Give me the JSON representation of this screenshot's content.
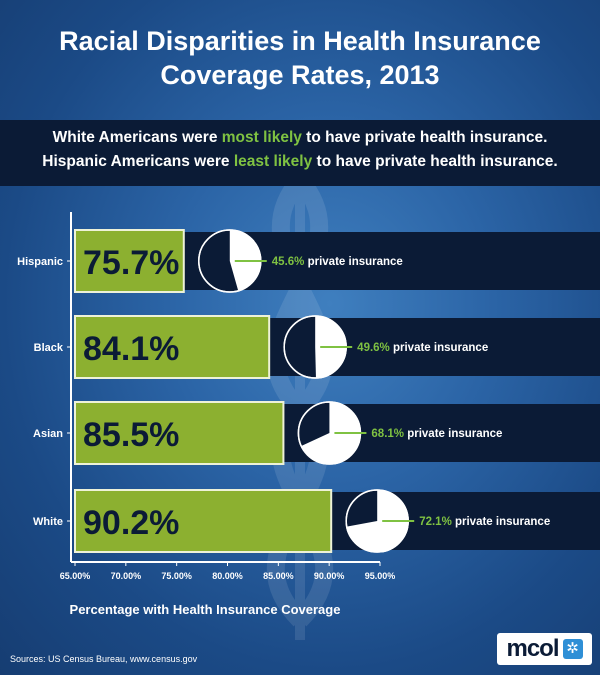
{
  "title_line1": "Racial Disparities in Health Insurance",
  "title_line2": "Coverage Rates, 2013",
  "subtitle": {
    "line1": {
      "pre": "White Americans were ",
      "highlight": "most likely",
      "post": " to have private health insurance."
    },
    "line2": {
      "pre": "Hispanic Americans were ",
      "highlight": "least likely",
      "post": " to have private health insurance."
    }
  },
  "colors": {
    "bar_fill": "#8cb030",
    "bar_text": "#0b1b36",
    "band": "#0b1b36",
    "accent_green": "#7fc242",
    "pie_dark": "#0b1b36",
    "pie_light": "#ffffff"
  },
  "chart_data": {
    "type": "bar",
    "orientation": "horizontal",
    "categories": [
      "Hispanic",
      "Black",
      "Asian",
      "White"
    ],
    "values": [
      75.7,
      84.1,
      85.5,
      90.2
    ],
    "value_labels": [
      "75.7%",
      "84.1%",
      "85.5%",
      "90.2%"
    ],
    "private_insurance": [
      45.6,
      49.6,
      68.1,
      72.1
    ],
    "private_labels": [
      "45.6%",
      "49.6%",
      "68.1%",
      "72.1%"
    ],
    "private_suffix": "private insurance",
    "xlim": [
      65,
      95
    ],
    "xticks": [
      "65.00%",
      "70.00%",
      "75.00%",
      "80.00%",
      "85.00%",
      "90.00%",
      "95.00%"
    ],
    "xtick_values": [
      65,
      70,
      75,
      80,
      85,
      90,
      95
    ],
    "xlabel": "Percentage with Health Insurance Coverage"
  },
  "sources": "Sources:  US Census Bureau, www.census.gov",
  "logo_text": "mcol",
  "logo_symbol": "✲"
}
